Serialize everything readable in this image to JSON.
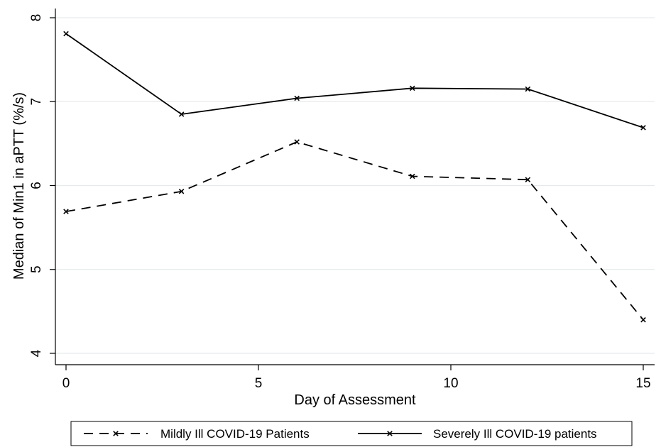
{
  "chart_data": {
    "type": "line",
    "title": "",
    "xlabel": "Day of Assessment",
    "ylabel": "Median of Min1 in aPTT (%/s)",
    "x": [
      0,
      3,
      6,
      9,
      12,
      15
    ],
    "xlim": [
      0,
      15
    ],
    "ylim": [
      4,
      8
    ],
    "xticks": [
      "0",
      "5",
      "10",
      "15"
    ],
    "yticks": [
      "4",
      "5",
      "6",
      "7",
      "8"
    ],
    "grid": "horizontal",
    "legend_position": "bottom",
    "series": [
      {
        "name": "Mildly Ill COVID-19 Patients",
        "style": "dashed",
        "marker": "x",
        "values": [
          5.69,
          5.93,
          6.52,
          6.11,
          6.07,
          4.4
        ]
      },
      {
        "name": "Severely Ill COVID-19 patients",
        "style": "solid",
        "marker": "x",
        "values": [
          7.81,
          6.85,
          7.04,
          7.16,
          7.15,
          6.69
        ]
      }
    ],
    "colors": {
      "line": "#000000",
      "grid": "#e6eaec"
    }
  }
}
